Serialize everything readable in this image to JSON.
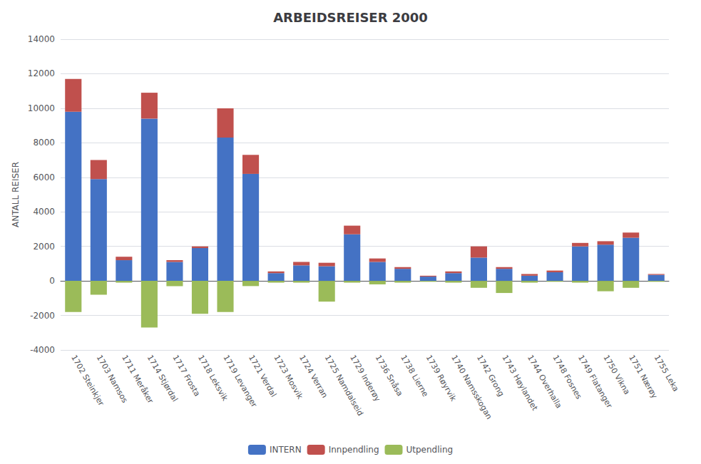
{
  "chart_data": {
    "type": "bar",
    "title": "ARBEIDSREISER 2000",
    "ylabel": "ANTALL REISER",
    "categories": [
      "1702 Steinkjer",
      "1703 Namsos",
      "1711 Meråker",
      "1714 Stjørdal",
      "1717 Frosta",
      "1718 Leksvik",
      "1719 Levanger",
      "1721 Verdal",
      "1723 Mosvik",
      "1724 Verran",
      "1725 Namdalseid",
      "1729 Inderøy",
      "1736 Snåsa",
      "1738 Lierne",
      "1739 Røyrvik",
      "1740 Namsskogan",
      "1742 Grong",
      "1743 Høylandet",
      "1744 Overhalla",
      "1748 Fosnes",
      "1749 Flatanger",
      "1750 Vikna",
      "1751 Nærøy",
      "1755 Leka"
    ],
    "series": [
      {
        "name": "INTERN",
        "color": "#4472C4",
        "values": [
          9800,
          5900,
          1200,
          9400,
          1100,
          1900,
          8300,
          6200,
          450,
          900,
          850,
          2700,
          1100,
          700,
          250,
          450,
          1350,
          700,
          300,
          500,
          2000,
          2100,
          2500,
          350
        ]
      },
      {
        "name": "Innpendling",
        "color": "#C0504D",
        "values": [
          1900,
          1100,
          200,
          1500,
          100,
          100,
          1700,
          1100,
          100,
          200,
          200,
          500,
          200,
          100,
          50,
          100,
          650,
          100,
          100,
          100,
          200,
          200,
          300,
          50
        ]
      },
      {
        "name": "Utpendling",
        "color": "#9BBB59",
        "values": [
          -1800,
          -800,
          -100,
          -2700,
          -300,
          -1900,
          -1800,
          -300,
          -100,
          -100,
          -1200,
          -100,
          -200,
          -100,
          -50,
          -100,
          -400,
          -700,
          -100,
          -50,
          -100,
          -600,
          -400,
          -50
        ]
      }
    ],
    "stacked": true,
    "ylim": [
      -4000,
      14000
    ],
    "yticks": [
      -4000,
      -2000,
      0,
      2000,
      4000,
      6000,
      8000,
      10000,
      12000,
      14000
    ],
    "grid": true,
    "legend": "bottom"
  }
}
